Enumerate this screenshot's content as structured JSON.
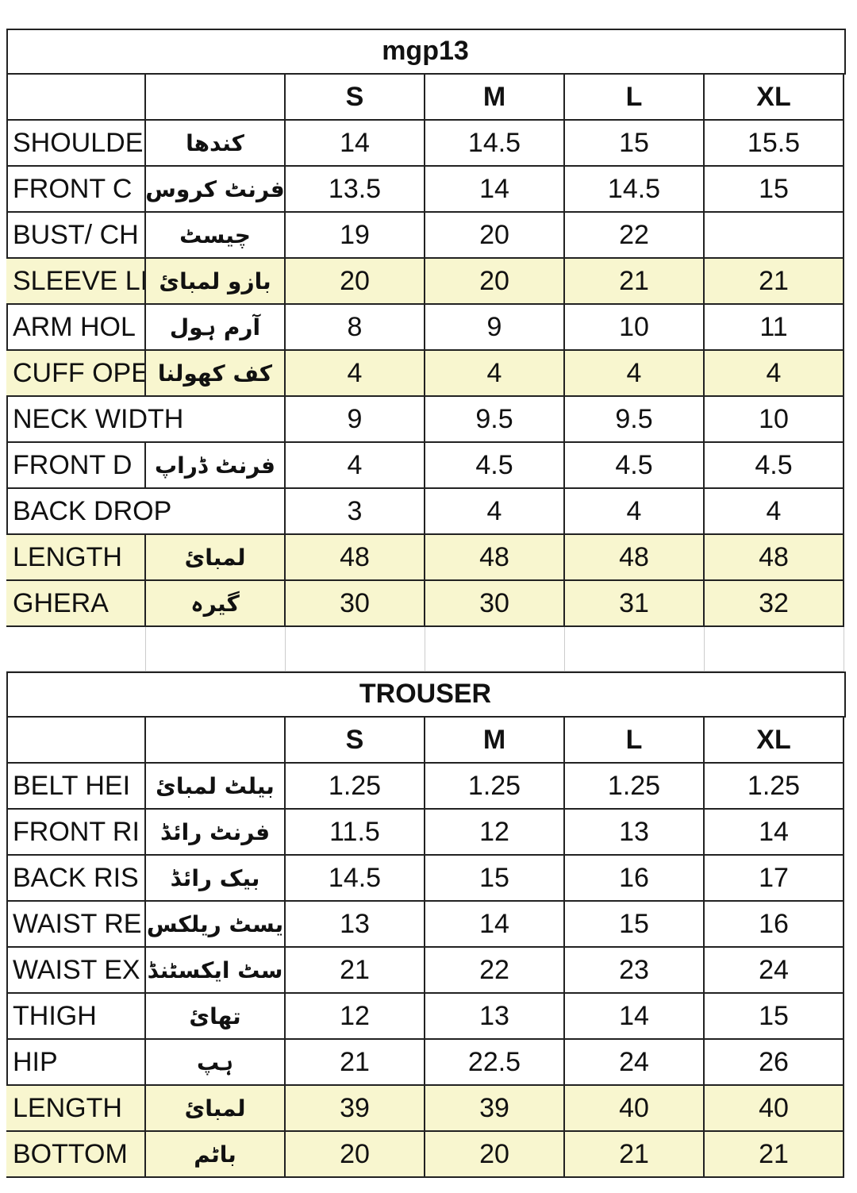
{
  "tables": [
    {
      "title": "mgp13",
      "header": [
        "S",
        "M",
        "L",
        "XL"
      ],
      "rows": [
        {
          "label": "SHOULDE",
          "urdu": "کندھا",
          "values": [
            "14",
            "14.5",
            "15",
            "15.5"
          ],
          "highlight": false
        },
        {
          "label": "FRONT C",
          "urdu": "فرنٹ کروس",
          "values": [
            "13.5",
            "14",
            "14.5",
            "15"
          ],
          "highlight": false
        },
        {
          "label": "BUST/ CH",
          "urdu": "چیسٹ",
          "values": [
            "19",
            "20",
            "22",
            null
          ],
          "highlight": false
        },
        {
          "label": "SLEEVE LI",
          "urdu": "بازو لمبائ",
          "values": [
            "20",
            "20",
            "21",
            "21"
          ],
          "highlight": true
        },
        {
          "label": "ARM HOL",
          "urdu": "آرم ہول",
          "values": [
            "8",
            "9",
            "10",
            "11"
          ],
          "highlight": false
        },
        {
          "label": "CUFF OPE",
          "urdu": "کف کھولنا",
          "values": [
            "4",
            "4",
            "4",
            "4"
          ],
          "highlight": true
        },
        {
          "label": "NECK WIDTH",
          "urdu": null,
          "values": [
            "9",
            "9.5",
            "9.5",
            "10"
          ],
          "highlight": false
        },
        {
          "label": "FRONT D",
          "urdu": "فرنٹ ڈراپ",
          "values": [
            "4",
            "4.5",
            "4.5",
            "4.5"
          ],
          "highlight": false
        },
        {
          "label": "BACK DROP",
          "urdu": null,
          "values": [
            "3",
            "4",
            "4",
            "4"
          ],
          "highlight": false
        },
        {
          "label": "LENGTH",
          "urdu": "لمبائ",
          "values": [
            "48",
            "48",
            "48",
            "48"
          ],
          "highlight": true
        },
        {
          "label": "GHERA",
          "urdu": "گیرہ",
          "values": [
            "30",
            "30",
            "31",
            "32"
          ],
          "highlight": true
        }
      ]
    },
    {
      "title": "TROUSER",
      "header": [
        "S",
        "M",
        "L",
        "XL"
      ],
      "rows": [
        {
          "label": "BELT HEI",
          "urdu": "بیلٹ لمبائ",
          "values": [
            "1.25",
            "1.25",
            "1.25",
            "1.25"
          ],
          "highlight": false
        },
        {
          "label": "FRONT RI",
          "urdu": "فرنٹ رائڈ",
          "values": [
            "11.5",
            "12",
            "13",
            "14"
          ],
          "highlight": false
        },
        {
          "label": "BACK RIS",
          "urdu": "بیک رائڈ",
          "values": [
            "14.5",
            "15",
            "16",
            "17"
          ],
          "highlight": false
        },
        {
          "label": "WAIST RE",
          "urdu": "یسٹ ریلکس",
          "values": [
            "13",
            "14",
            "15",
            "16"
          ],
          "highlight": false
        },
        {
          "label": "WAIST EX",
          "urdu": "سٹ ایکسٹنڈ",
          "values": [
            "21",
            "22",
            "23",
            "24"
          ],
          "highlight": false
        },
        {
          "label": "THIGH",
          "urdu": "تھائ",
          "values": [
            "12",
            "13",
            "14",
            "15"
          ],
          "highlight": false
        },
        {
          "label": "HIP",
          "urdu": "ہپ",
          "values": [
            "21",
            "22.5",
            "24",
            "26"
          ],
          "highlight": false
        },
        {
          "label": "LENGTH",
          "urdu": "لمبائ",
          "values": [
            "39",
            "39",
            "40",
            "40"
          ],
          "highlight": true
        },
        {
          "label": "BOTTOM",
          "urdu": "باٹم",
          "values": [
            "20",
            "20",
            "21",
            "21"
          ],
          "highlight": true
        }
      ]
    }
  ]
}
